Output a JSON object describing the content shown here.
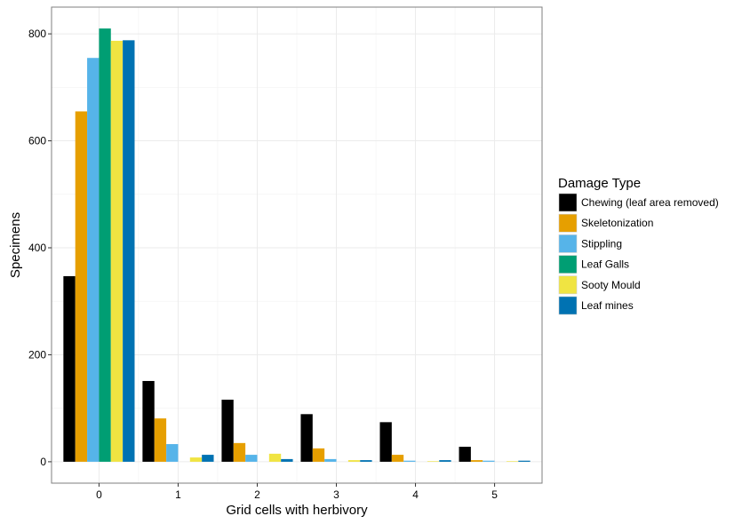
{
  "chart_data": {
    "type": "bar",
    "xlabel": "Grid cells with herbivory",
    "ylabel": "Specimens",
    "categories": [
      "0",
      "1",
      "2",
      "3",
      "4",
      "5"
    ],
    "ylim": [
      -40,
      850
    ],
    "yticks": [
      0,
      200,
      400,
      600,
      800
    ],
    "grid": true,
    "legend": {
      "title": "Damage Type",
      "placement": "right"
    },
    "series": [
      {
        "name": "Chewing (leaf area removed)",
        "color": "#000000",
        "values": [
          347,
          151,
          116,
          89,
          74,
          28
        ]
      },
      {
        "name": "Skeletonization",
        "color": "#E69F00",
        "values": [
          655,
          81,
          35,
          25,
          13,
          3
        ]
      },
      {
        "name": "Stippling",
        "color": "#56B4E9",
        "values": [
          755,
          33,
          13,
          5,
          2,
          2
        ]
      },
      {
        "name": "Leaf Galls",
        "color": "#009E73",
        "values": [
          810,
          0,
          0,
          0,
          0,
          0
        ]
      },
      {
        "name": "Sooty Mould",
        "color": "#F0E442",
        "values": [
          787,
          8,
          15,
          3,
          1,
          1
        ]
      },
      {
        "name": "Leaf mines",
        "color": "#0072B2",
        "values": [
          788,
          13,
          5,
          3,
          3,
          2
        ]
      }
    ]
  }
}
